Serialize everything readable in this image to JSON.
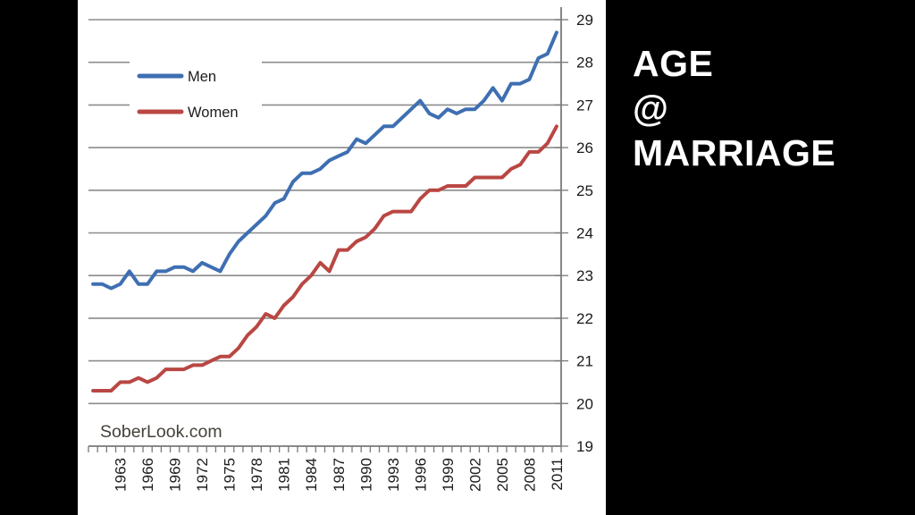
{
  "slide": {
    "title_lines": [
      "AGE",
      "@",
      "MARRIAGE"
    ],
    "title_color": "#FFFFFF",
    "background": "#000000"
  },
  "watermark": {
    "text": "SoberLook.com"
  },
  "colors": {
    "panel_bg": "#FFFFFF",
    "gridline": "#8C8C8C",
    "axis": "#7A7A7A",
    "tick_text": "#1A1A1A",
    "watermark_text": "#45413A",
    "men_line": "#3E6FB2",
    "women_line": "#B94743"
  },
  "chart_data": {
    "type": "line",
    "title": "",
    "xlabel": "",
    "ylabel": "",
    "ylim": [
      19,
      29
    ],
    "grid": "horizontal",
    "y_axis_side": "right",
    "legend_position": "upper-left-inside",
    "ytick_labels": [
      "19",
      "20",
      "21",
      "22",
      "23",
      "24",
      "25",
      "26",
      "27",
      "28",
      "29"
    ],
    "xtick_labels": [
      "1963",
      "1966",
      "1969",
      "1972",
      "1975",
      "1978",
      "1981",
      "1984",
      "1987",
      "1990",
      "1993",
      "1996",
      "1999",
      "2002",
      "2005",
      "2008",
      "2011"
    ],
    "x": [
      1960,
      1961,
      1962,
      1963,
      1964,
      1965,
      1966,
      1967,
      1968,
      1969,
      1970,
      1971,
      1972,
      1973,
      1974,
      1975,
      1976,
      1977,
      1978,
      1979,
      1980,
      1981,
      1982,
      1983,
      1984,
      1985,
      1986,
      1987,
      1988,
      1989,
      1990,
      1991,
      1992,
      1993,
      1994,
      1995,
      1996,
      1997,
      1998,
      1999,
      2000,
      2001,
      2002,
      2003,
      2004,
      2005,
      2006,
      2007,
      2008,
      2009,
      2010,
      2011
    ],
    "series": [
      {
        "name": "Men",
        "color": "#3E6FB2",
        "values": [
          22.8,
          22.8,
          22.7,
          22.8,
          23.1,
          22.8,
          22.8,
          23.1,
          23.1,
          23.2,
          23.2,
          23.1,
          23.3,
          23.2,
          23.1,
          23.5,
          23.8,
          24.0,
          24.2,
          24.4,
          24.7,
          24.8,
          25.2,
          25.4,
          25.4,
          25.5,
          25.7,
          25.8,
          25.9,
          26.2,
          26.1,
          26.3,
          26.5,
          26.5,
          26.7,
          26.9,
          27.1,
          26.8,
          26.7,
          26.9,
          26.8,
          26.9,
          26.9,
          27.1,
          27.4,
          27.1,
          27.5,
          27.5,
          27.6,
          28.1,
          28.2,
          28.7
        ]
      },
      {
        "name": "Women",
        "color": "#B94743",
        "values": [
          20.3,
          20.3,
          20.3,
          20.5,
          20.5,
          20.6,
          20.5,
          20.6,
          20.8,
          20.8,
          20.8,
          20.9,
          20.9,
          21.0,
          21.1,
          21.1,
          21.3,
          21.6,
          21.8,
          22.1,
          22.0,
          22.3,
          22.5,
          22.8,
          23.0,
          23.3,
          23.1,
          23.6,
          23.6,
          23.8,
          23.9,
          24.1,
          24.4,
          24.5,
          24.5,
          24.5,
          24.8,
          25.0,
          25.0,
          25.1,
          25.1,
          25.1,
          25.3,
          25.3,
          25.3,
          25.3,
          25.5,
          25.6,
          25.9,
          25.9,
          26.1,
          26.5
        ]
      }
    ]
  }
}
